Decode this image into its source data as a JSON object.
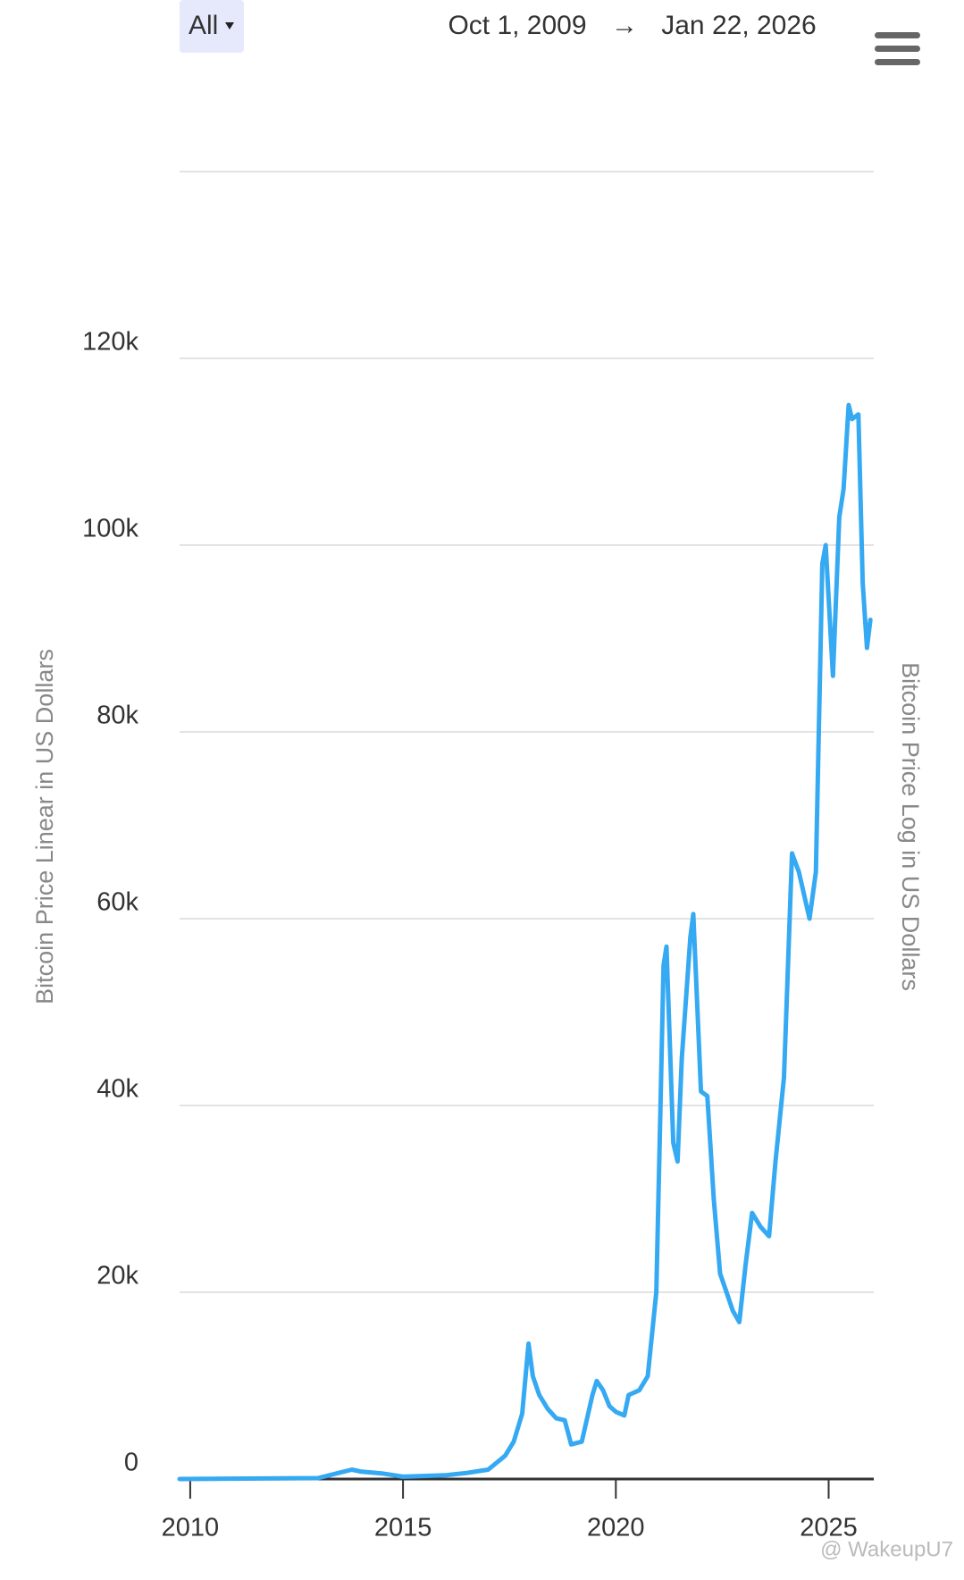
{
  "header": {
    "range": "All",
    "start": "Oct 1, 2009",
    "arrow": "→",
    "end": "Jan 22, 2026"
  },
  "watermark": "@ WakeupU7",
  "chart_data": {
    "type": "line",
    "y_label": "Bitcoin Price Linear in US Dollars",
    "y2_label": "Bitcoin Price Log in US Dollars",
    "color": "#35a9f2",
    "x": [
      2009.75,
      2013.0,
      2013.8,
      2014.0,
      2014.5,
      2015.0,
      2016.0,
      2016.5,
      2017.0,
      2017.4,
      2017.6,
      2017.8,
      2017.95,
      2018.05,
      2018.2,
      2018.4,
      2018.6,
      2018.8,
      2018.95,
      2019.2,
      2019.45,
      2019.55,
      2019.7,
      2019.85,
      2020.0,
      2020.2,
      2020.3,
      2020.55,
      2020.75,
      2020.95,
      2021.05,
      2021.12,
      2021.19,
      2021.35,
      2021.45,
      2021.55,
      2021.75,
      2021.82,
      2022.0,
      2022.15,
      2022.3,
      2022.45,
      2022.6,
      2022.75,
      2022.9,
      2023.05,
      2023.2,
      2023.4,
      2023.6,
      2023.75,
      2023.95,
      2024.14,
      2024.3,
      2024.55,
      2024.7,
      2024.85,
      2024.93,
      2025.1,
      2025.25,
      2025.35,
      2025.47,
      2025.55,
      2025.7,
      2025.8,
      2025.9,
      2025.98
    ],
    "values": [
      0,
      100,
      1000,
      800,
      600,
      250,
      400,
      650,
      1000,
      2500,
      4000,
      7000,
      14500,
      11000,
      9000,
      7500,
      6500,
      6300,
      3700,
      4000,
      9000,
      10500,
      9500,
      7800,
      7200,
      6800,
      9000,
      9500,
      11000,
      20000,
      40000,
      55000,
      57000,
      36000,
      34000,
      45000,
      58000,
      60500,
      41500,
      41000,
      30000,
      22000,
      20000,
      18000,
      16800,
      23000,
      28500,
      27000,
      26000,
      34000,
      43000,
      67000,
      65000,
      60000,
      65000,
      98000,
      100000,
      86000,
      103000,
      106000,
      115000,
      113500,
      114000,
      96000,
      89000,
      92000
    ],
    "xlim": [
      2009.75,
      2026.06
    ],
    "xticks": [
      2010,
      2015,
      2020,
      2025
    ],
    "ylim": [
      0,
      140000
    ],
    "yticks": [
      0,
      {
        "value": 20000,
        "label": "20k"
      },
      {
        "value": 40000,
        "label": "40k"
      },
      {
        "value": 60000,
        "label": "60k"
      },
      {
        "value": 80000,
        "label": "80k"
      },
      {
        "value": 100000,
        "label": "100k"
      },
      {
        "value": 120000,
        "label": "120k"
      }
    ],
    "grid": true
  }
}
